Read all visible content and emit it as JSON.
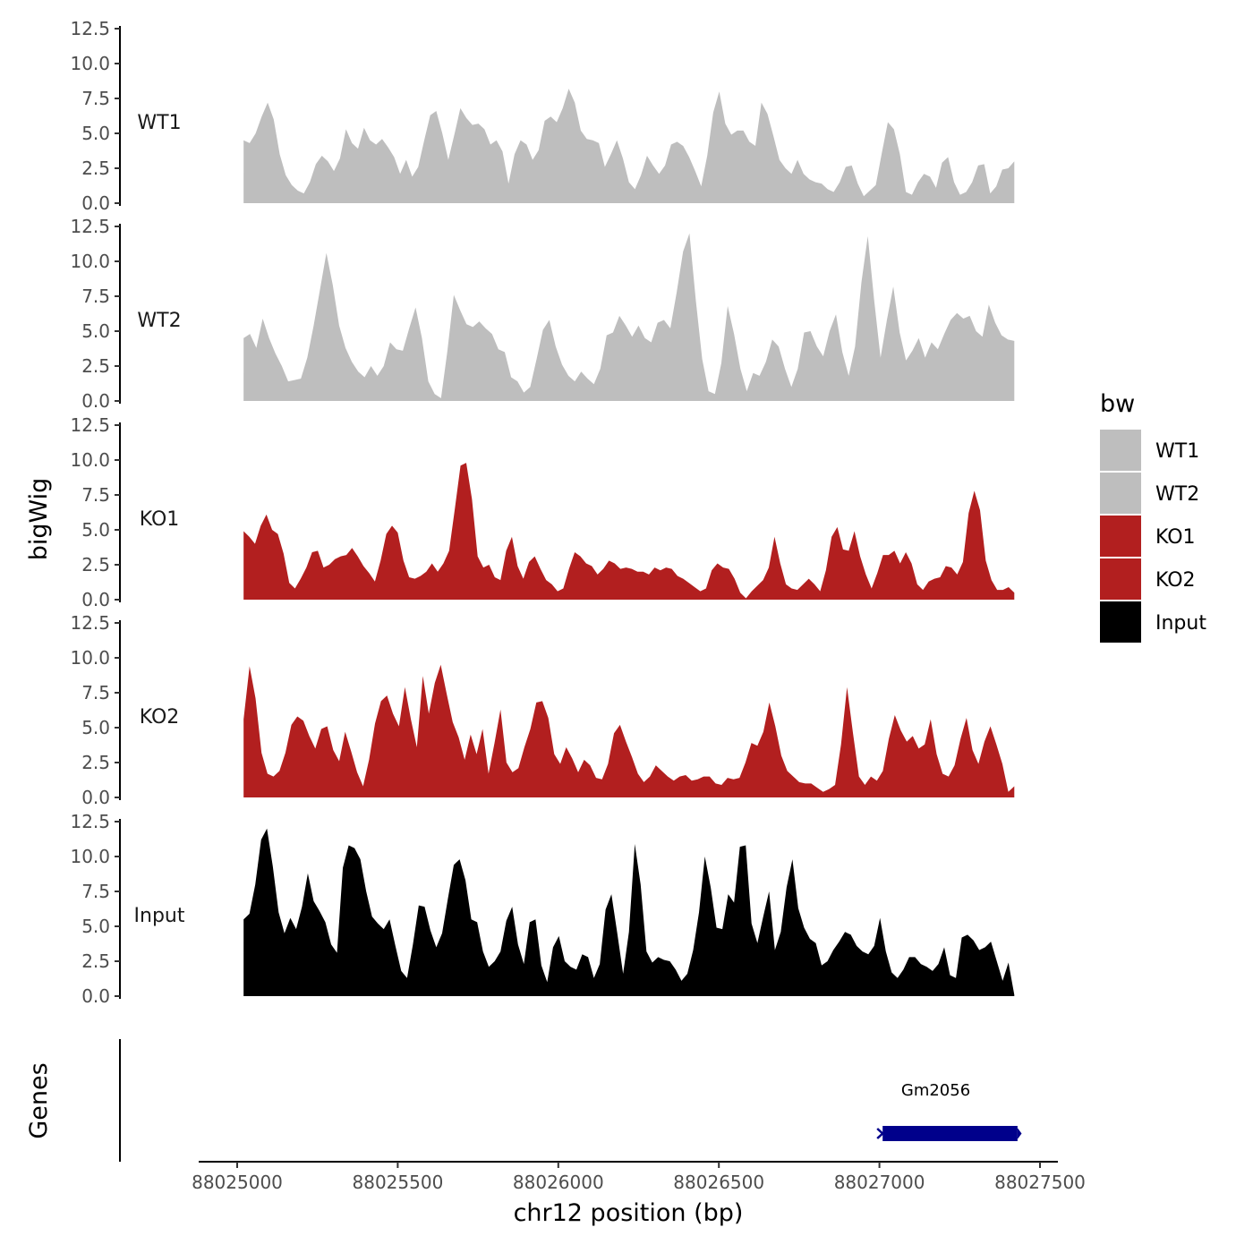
{
  "chart_data": {
    "type": "area",
    "title": "",
    "ylabel": "bigWig",
    "xlabel": "chr12 position (bp)",
    "ylim": [
      0,
      12.5
    ],
    "yticks": [
      "0.0",
      "2.5",
      "5.0",
      "7.5",
      "10.0",
      "12.5"
    ],
    "xlim": [
      88024880,
      88027530
    ],
    "xticks": [
      88025000,
      88025500,
      88026000,
      88026500,
      88027000,
      88027500
    ],
    "xtick_labels": [
      "88025000",
      "88025500",
      "88026000",
      "88026500",
      "88027000",
      "88027500"
    ],
    "x_start": 88025020,
    "x_end": 88027420,
    "series": [
      {
        "name": "WT1",
        "color": "#bebebe",
        "values": [
          4.5,
          4.3,
          5,
          6.2,
          7.2,
          6,
          3.5,
          2,
          1.3,
          0.9,
          0.7,
          1.5,
          2.8,
          3.4,
          3,
          2.3,
          3.2,
          5.3,
          4.3,
          3.9,
          5.4,
          4.5,
          4.2,
          4.6,
          4,
          3.3,
          2.1,
          3.1,
          1.9,
          2.6,
          4.5,
          6.3,
          6.6,
          5,
          3.1,
          4.9,
          6.8,
          6.1,
          5.6,
          5.7,
          5.3,
          4.2,
          4.5,
          3.7,
          1.4,
          3.5,
          4.5,
          4.2,
          3.1,
          3.8,
          5.9,
          6.2,
          5.8,
          6.8,
          8.2,
          7.2,
          5.2,
          4.6,
          4.5,
          4.3,
          2.6,
          3.5,
          4.5,
          3.2,
          1.5,
          1,
          2,
          3.4,
          2.7,
          2.1,
          2.7,
          4.2,
          4.4,
          4.1,
          3.3,
          2.3,
          1.2,
          3.4,
          6.5,
          8,
          5.7,
          4.9,
          5.2,
          5.2,
          4.4,
          4.1,
          7.2,
          6.4,
          4.8,
          3.1,
          2.5,
          2.1,
          3.1,
          2.1,
          1.7,
          1.5,
          1.4,
          1,
          0.8,
          1.5,
          2.6,
          2.7,
          1.4,
          0.5,
          0.9,
          1.3,
          3.6,
          5.8,
          5.3,
          3.5,
          0.8,
          0.6,
          1.5,
          2.1,
          1.9,
          1.1,
          2.9,
          3.3,
          1.5,
          0.6,
          0.8,
          1.5,
          2.7,
          2.8,
          0.7,
          1.2,
          2.4,
          2.5,
          3
        ]
      },
      {
        "name": "WT2",
        "color": "#bebebe",
        "values": [
          4.5,
          4.8,
          3.8,
          5.9,
          4.5,
          3.4,
          2.5,
          1.4,
          1.5,
          1.6,
          3.1,
          5.4,
          8,
          10.6,
          8.3,
          5.4,
          3.8,
          2.8,
          2.1,
          1.7,
          2.5,
          1.8,
          2.5,
          4.2,
          3.7,
          3.6,
          5.2,
          6.7,
          4.5,
          1.4,
          0.5,
          0.2,
          3.6,
          7.6,
          6.5,
          5.5,
          5.3,
          5.7,
          5.2,
          4.8,
          3.7,
          3.5,
          1.7,
          1.4,
          0.6,
          1,
          3,
          5.1,
          5.8,
          3.9,
          2.6,
          1.8,
          1.4,
          2.1,
          1.6,
          1.2,
          2.3,
          4.7,
          4.9,
          6.1,
          5.4,
          4.6,
          5.4,
          4.5,
          4.2,
          5.6,
          5.8,
          5.2,
          7.8,
          10.7,
          12,
          7.2,
          3,
          0.7,
          0.5,
          2.7,
          6.8,
          4.8,
          2.3,
          0.7,
          2,
          1.8,
          2.8,
          4.4,
          3.9,
          2.3,
          1,
          2.3,
          4.9,
          5,
          3.9,
          3.2,
          5,
          6.2,
          3.5,
          1.8,
          3.9,
          8.5,
          11.8,
          7.2,
          3.1,
          5.8,
          8.2,
          4.9,
          2.9,
          3.6,
          4.5,
          3.1,
          4.2,
          3.7,
          4.8,
          5.8,
          6.3,
          5.9,
          6.1,
          5,
          4.6,
          6.9,
          5.6,
          4.7,
          4.4,
          4.3
        ]
      },
      {
        "name": "KO1",
        "color": "#b21f1f",
        "values": [
          4.9,
          4.5,
          4,
          5.3,
          6.1,
          5,
          4.7,
          3.3,
          1.2,
          0.8,
          1.5,
          2.3,
          3.4,
          3.5,
          2.3,
          2.5,
          2.9,
          3.1,
          3.2,
          3.7,
          3.1,
          2.4,
          1.9,
          1.3,
          2.8,
          4.7,
          5.3,
          4.8,
          2.8,
          1.6,
          1.5,
          1.7,
          2,
          2.6,
          2,
          2.6,
          3.5,
          6.5,
          9.6,
          9.8,
          7.2,
          3.1,
          2.3,
          2.5,
          1.6,
          1.4,
          3.5,
          4.5,
          2.4,
          1.5,
          2.7,
          3.1,
          2.2,
          1.4,
          1.1,
          0.6,
          0.8,
          2.2,
          3.4,
          3.1,
          2.6,
          2.4,
          1.8,
          2.2,
          2.8,
          2.6,
          2.2,
          2.3,
          2.2,
          2,
          2,
          1.8,
          2.3,
          2.1,
          2.3,
          2.2,
          1.7,
          1.5,
          1.2,
          0.9,
          0.6,
          0.8,
          2.1,
          2.6,
          2.3,
          2.2,
          1.5,
          0.5,
          0.1,
          0.6,
          1,
          1.4,
          2.3,
          4.5,
          2.6,
          1.1,
          0.8,
          0.7,
          1.1,
          1.5,
          1.1,
          0.6,
          2.1,
          4.5,
          5.2,
          3.6,
          3.5,
          4.9,
          3.1,
          1.8,
          0.8,
          1.9,
          3.2,
          3.2,
          3.5,
          2.6,
          3.4,
          2.6,
          1.1,
          0.7,
          1.3,
          1.5,
          1.6,
          2.4,
          2.3,
          1.8,
          2.7,
          6.2,
          7.8,
          6.4,
          2.8,
          1.4,
          0.7,
          0.7,
          0.9,
          0.5
        ]
      },
      {
        "name": "KO2",
        "color": "#b21f1f",
        "values": [
          5.6,
          9.4,
          7.1,
          3.2,
          1.7,
          1.5,
          1.9,
          3.2,
          5.2,
          5.8,
          5.5,
          4.4,
          3.5,
          4.9,
          5.1,
          3.4,
          2.6,
          4.7,
          3.3,
          1.8,
          0.8,
          2.7,
          5.3,
          6.9,
          7.3,
          6,
          5.1,
          7.9,
          5.6,
          3.6,
          8.7,
          6,
          8.2,
          9.5,
          7.4,
          5.4,
          4.3,
          2.7,
          4.5,
          3.1,
          4.9,
          1.7,
          3.9,
          6.3,
          2.5,
          1.8,
          2.1,
          3.6,
          4.9,
          6.8,
          6.9,
          5.7,
          3.1,
          2.4,
          3.6,
          2.8,
          1.8,
          2.7,
          2.3,
          1.4,
          1.3,
          2.4,
          4.6,
          5.2,
          4,
          2.9,
          1.7,
          1.1,
          1.5,
          2.3,
          1.9,
          1.5,
          1.2,
          1.5,
          1.6,
          1.2,
          1.3,
          1.5,
          1.5,
          1,
          0.9,
          1.4,
          1.3,
          1.4,
          2.5,
          3.9,
          3.7,
          4.7,
          6.8,
          5.1,
          3,
          1.9,
          1.5,
          1.1,
          1,
          1,
          0.7,
          0.4,
          0.6,
          0.9,
          3.8,
          7.9,
          4.6,
          1.5,
          0.9,
          1.5,
          1.2,
          1.9,
          4.2,
          5.9,
          4.8,
          4,
          4.4,
          3.5,
          3.8,
          5.6,
          3.1,
          1.7,
          1.5,
          2.3,
          4.2,
          5.7,
          3.4,
          2.4,
          4,
          5.1,
          3.8,
          2.4,
          0.4,
          0.8
        ]
      },
      {
        "name": "Input",
        "color": "#000000",
        "values": [
          5.5,
          5.9,
          8,
          11.2,
          12,
          9.3,
          6,
          4.5,
          5.6,
          4.8,
          6.4,
          8.8,
          6.8,
          6.1,
          5.3,
          3.7,
          3.1,
          9.2,
          10.8,
          10.6,
          9.8,
          7.5,
          5.7,
          5.2,
          4.8,
          5.5,
          3.6,
          1.8,
          1.3,
          3.7,
          6.5,
          6.4,
          4.7,
          3.5,
          4.5,
          7,
          9.4,
          9.8,
          8.3,
          5.5,
          5.3,
          3.2,
          2.1,
          2.5,
          3.2,
          5.4,
          6.4,
          3.7,
          2.3,
          5.3,
          5.5,
          2.2,
          1,
          3.5,
          4.3,
          2.5,
          2.1,
          1.9,
          3,
          2.8,
          1.3,
          2.3,
          6.2,
          7.3,
          4.5,
          1.6,
          4.6,
          10.9,
          8,
          3.2,
          2.4,
          2.8,
          2.6,
          2.5,
          1.9,
          1.1,
          1.6,
          3.3,
          6,
          10,
          7.8,
          4.9,
          4.8,
          7.3,
          6.7,
          10.7,
          10.8,
          5.2,
          3.8,
          5.7,
          7.5,
          3.3,
          4.6,
          7.8,
          9.8,
          6.3,
          4.9,
          4.1,
          3.8,
          2.2,
          2.5,
          3.3,
          3.9,
          4.6,
          4.4,
          3.6,
          3.2,
          3,
          3.6,
          5.6,
          3.2,
          1.7,
          1.3,
          1.9,
          2.8,
          2.8,
          2.3,
          2.1,
          1.8,
          2.3,
          3.5,
          1.5,
          1.3,
          4.2,
          4.4,
          4,
          3.3,
          3.5,
          3.9,
          2.5,
          1.1,
          2.4,
          0.1
        ]
      }
    ],
    "track_labels": [
      "WT1",
      "WT2",
      "KO1",
      "KO2",
      "Input"
    ],
    "legend": {
      "title": "bw",
      "position": "right",
      "entries": [
        {
          "label": "WT1",
          "color": "#bebebe"
        },
        {
          "label": "WT2",
          "color": "#bebebe"
        },
        {
          "label": "KO1",
          "color": "#b21f1f"
        },
        {
          "label": "KO2",
          "color": "#b21f1f"
        },
        {
          "label": "Input",
          "color": "#000000"
        }
      ]
    },
    "genes": {
      "ylabel": "Genes",
      "items": [
        {
          "name": "Gm2056",
          "start": 88027010,
          "end": 88027430,
          "color": "#00008b"
        }
      ]
    },
    "grid": false
  }
}
